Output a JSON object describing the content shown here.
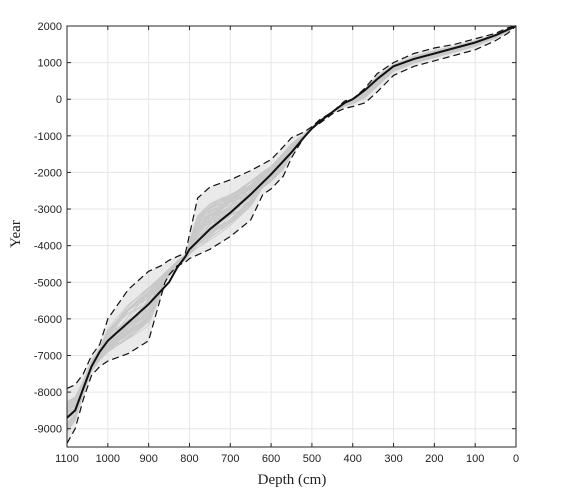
{
  "chart_data": {
    "type": "line",
    "title": "",
    "xlabel": "Depth (cm)",
    "ylabel": "Year",
    "xlim": [
      1100,
      0
    ],
    "ylim": [
      -9500,
      2000
    ],
    "x_reversed": true,
    "grid": true,
    "xticks": [
      1100,
      1000,
      900,
      800,
      700,
      600,
      500,
      400,
      300,
      200,
      100,
      0
    ],
    "yticks": [
      2000,
      1000,
      0,
      -1000,
      -2000,
      -3000,
      -4000,
      -5000,
      -6000,
      -7000,
      -8000,
      -9000
    ],
    "colors": {
      "median": "#111111",
      "bounds": "#111111",
      "ensemble": "#c9c9c9",
      "envelope": "#d9d9d9"
    },
    "series": [
      {
        "style": "solid-median",
        "x": [
          1100,
          1080,
          1060,
          1040,
          1020,
          1000,
          950,
          900,
          850,
          830,
          810,
          800,
          750,
          700,
          650,
          600,
          550,
          520,
          500,
          480,
          450,
          420,
          400,
          370,
          340,
          300,
          250,
          200,
          150,
          100,
          50,
          20,
          0
        ],
        "y": [
          -8700,
          -8500,
          -7900,
          -7300,
          -6900,
          -6600,
          -6100,
          -5600,
          -5000,
          -4600,
          -4300,
          -4100,
          -3550,
          -3100,
          -2600,
          -2050,
          -1450,
          -1050,
          -800,
          -600,
          -350,
          -100,
          0,
          250,
          550,
          900,
          1100,
          1250,
          1400,
          1550,
          1750,
          1900,
          2000
        ]
      },
      {
        "style": "dashed-upper",
        "x": [
          1100,
          1080,
          1060,
          1040,
          1020,
          1000,
          950,
          900,
          870,
          850,
          830,
          810,
          800,
          780,
          750,
          700,
          650,
          600,
          570,
          550,
          520,
          500,
          480,
          450,
          420,
          400,
          370,
          340,
          300,
          250,
          200,
          150,
          100,
          50,
          20,
          0
        ],
        "y": [
          -7900,
          -7800,
          -7500,
          -7000,
          -6700,
          -6000,
          -5200,
          -4700,
          -4550,
          -4400,
          -4300,
          -4200,
          -3700,
          -2700,
          -2400,
          -2200,
          -1950,
          -1650,
          -1300,
          -1050,
          -900,
          -750,
          -550,
          -350,
          -50,
          0,
          300,
          700,
          1000,
          1250,
          1400,
          1500,
          1650,
          1800,
          1950,
          2000
        ]
      },
      {
        "style": "dashed-lower",
        "x": [
          1100,
          1080,
          1060,
          1040,
          1020,
          1000,
          950,
          900,
          880,
          860,
          850,
          830,
          810,
          800,
          750,
          700,
          650,
          620,
          600,
          570,
          550,
          520,
          500,
          480,
          450,
          420,
          400,
          370,
          340,
          300,
          250,
          200,
          150,
          100,
          50,
          20,
          0
        ],
        "y": [
          -9400,
          -9000,
          -8200,
          -7550,
          -7300,
          -7150,
          -6950,
          -6600,
          -5800,
          -5000,
          -4800,
          -4550,
          -4450,
          -4350,
          -4100,
          -3750,
          -3300,
          -2600,
          -2450,
          -2100,
          -1600,
          -1050,
          -800,
          -650,
          -400,
          -250,
          -200,
          -100,
          200,
          650,
          900,
          1050,
          1200,
          1350,
          1600,
          1800,
          2000
        ]
      }
    ]
  }
}
